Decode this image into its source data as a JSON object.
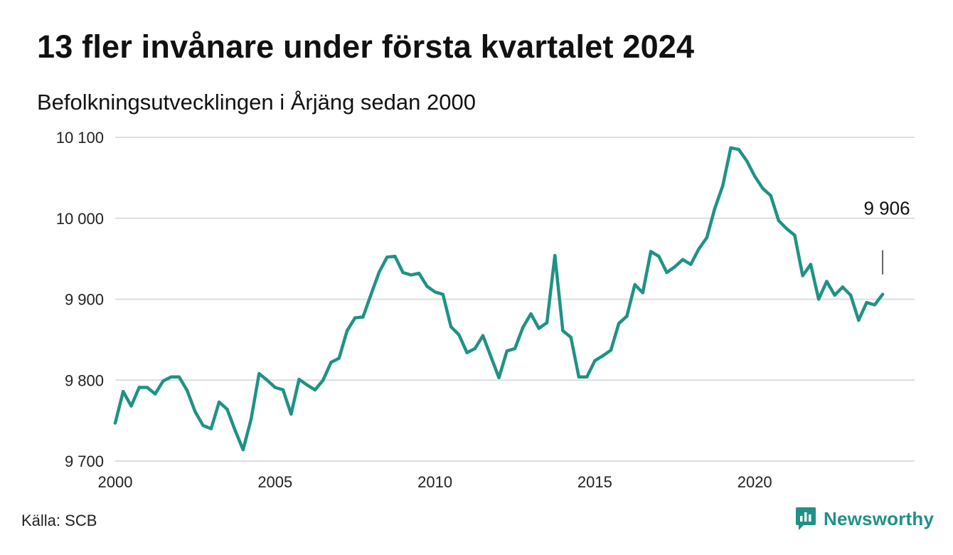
{
  "title": "13 fler invånare under första kvartalet 2024",
  "subtitle": "Befolkningsutvecklingen i Årjäng sedan 2000",
  "source": "Källa: SCB",
  "brand": {
    "name": "Newsworthy",
    "icon": "newsworthy-logo-icon"
  },
  "colors": {
    "line": "#1f9285",
    "grid": "#dddddd",
    "brand": "#1f9285",
    "text": "#111111"
  },
  "chart_data": {
    "type": "line",
    "title": "13 fler invånare under första kvartalet 2024",
    "subtitle": "Befolkningsutvecklingen i Årjäng sedan 2000",
    "xlabel": "",
    "ylabel": "",
    "xlim": [
      2000,
      2025
    ],
    "ylim": [
      9700,
      10100
    ],
    "grid": "horizontal",
    "x_ticks": [
      2000,
      2005,
      2010,
      2015,
      2020
    ],
    "x_tick_labels": [
      "2000",
      "2005",
      "2010",
      "2015",
      "2020"
    ],
    "y_ticks": [
      9700,
      9800,
      9900,
      10000,
      10100
    ],
    "y_tick_labels": [
      "9 700",
      "9 800",
      "9 900",
      "10 000",
      "10 100"
    ],
    "annotation": {
      "x": 2024.0,
      "y": 9906,
      "label": "9 906"
    },
    "series": [
      {
        "x": [
          2000.0,
          2000.25,
          2000.5,
          2000.75,
          2001.0,
          2001.25,
          2001.5,
          2001.75,
          2002.0,
          2002.25,
          2002.5,
          2002.75,
          2003.0,
          2003.25,
          2003.5,
          2003.75,
          2004.0,
          2004.25,
          2004.5,
          2004.75,
          2005.0,
          2005.25,
          2005.5,
          2005.75,
          2006.0,
          2006.25,
          2006.5,
          2006.75,
          2007.0,
          2007.25,
          2007.5,
          2007.75,
          2008.0,
          2008.25,
          2008.5,
          2008.75,
          2009.0,
          2009.25,
          2009.5,
          2009.75,
          2010.0,
          2010.25,
          2010.5,
          2010.75,
          2011.0,
          2011.25,
          2011.5,
          2011.75,
          2012.0,
          2012.25,
          2012.5,
          2012.75,
          2013.0,
          2013.25,
          2013.5,
          2013.75,
          2014.0,
          2014.25,
          2014.5,
          2014.75,
          2015.0,
          2015.25,
          2015.5,
          2015.75,
          2016.0,
          2016.25,
          2016.5,
          2016.75,
          2017.0,
          2017.25,
          2017.5,
          2017.75,
          2018.0,
          2018.25,
          2018.5,
          2018.75,
          2019.0,
          2019.25,
          2019.5,
          2019.75,
          2020.0,
          2020.25,
          2020.5,
          2020.75,
          2021.0,
          2021.25,
          2021.5,
          2021.75,
          2022.0,
          2022.25,
          2022.5,
          2022.75,
          2023.0,
          2023.25,
          2023.5,
          2023.75,
          2024.0
        ],
        "values": [
          9747,
          9786,
          9768,
          9791,
          9791,
          9783,
          9799,
          9804,
          9804,
          9787,
          9761,
          9744,
          9740,
          9773,
          9764,
          9738,
          9714,
          9752,
          9808,
          9800,
          9791,
          9788,
          9758,
          9801,
          9794,
          9788,
          9800,
          9822,
          9827,
          9861,
          9877,
          9878,
          9906,
          9933,
          9952,
          9953,
          9933,
          9930,
          9932,
          9916,
          9909,
          9906,
          9866,
          9856,
          9834,
          9839,
          9855,
          9829,
          9803,
          9836,
          9839,
          9865,
          9882,
          9864,
          9871,
          9954,
          9861,
          9853,
          9804,
          9804,
          9824,
          9830,
          9837,
          9870,
          9879,
          9918,
          9908,
          9959,
          9953,
          9933,
          9940,
          9949,
          9943,
          9962,
          9976,
          10012,
          10040,
          10087,
          10085,
          10071,
          10052,
          10037,
          10028,
          9997,
          9987,
          9979,
          9929,
          9943,
          9900,
          9922,
          9905,
          9915,
          9905,
          9874,
          9896,
          9893,
          9906
        ]
      }
    ]
  }
}
